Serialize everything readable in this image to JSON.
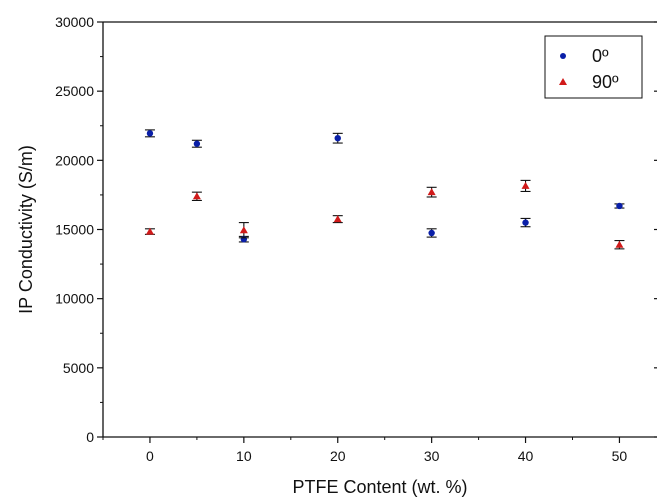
{
  "chart_data": {
    "type": "scatter",
    "title": "",
    "xlabel": "PTFE Content (wt. %)",
    "ylabel": "IP Conductivity (S/m)",
    "xlim": [
      -5,
      54
    ],
    "ylim": [
      0,
      30000
    ],
    "xticks": [
      0,
      10,
      20,
      30,
      40,
      50
    ],
    "yticks": [
      0,
      5000,
      10000,
      15000,
      20000,
      25000,
      30000
    ],
    "grid": false,
    "legend_position": "top-right",
    "series": [
      {
        "name": "0º",
        "marker": "circle",
        "color": "#0a1fa8",
        "x": [
          0,
          5,
          10,
          20,
          30,
          40,
          50
        ],
        "y": [
          21950,
          21200,
          14300,
          21600,
          14750,
          15500,
          16700
        ],
        "err": [
          250,
          250,
          200,
          350,
          300,
          300,
          150
        ]
      },
      {
        "name": "90º",
        "marker": "triangle",
        "color": "#d11a1a",
        "x": [
          0,
          5,
          10,
          20,
          30,
          40,
          50
        ],
        "y": [
          14850,
          17400,
          14950,
          15750,
          17700,
          18150,
          13900
        ],
        "err": [
          200,
          300,
          550,
          250,
          350,
          400,
          300
        ]
      }
    ]
  }
}
